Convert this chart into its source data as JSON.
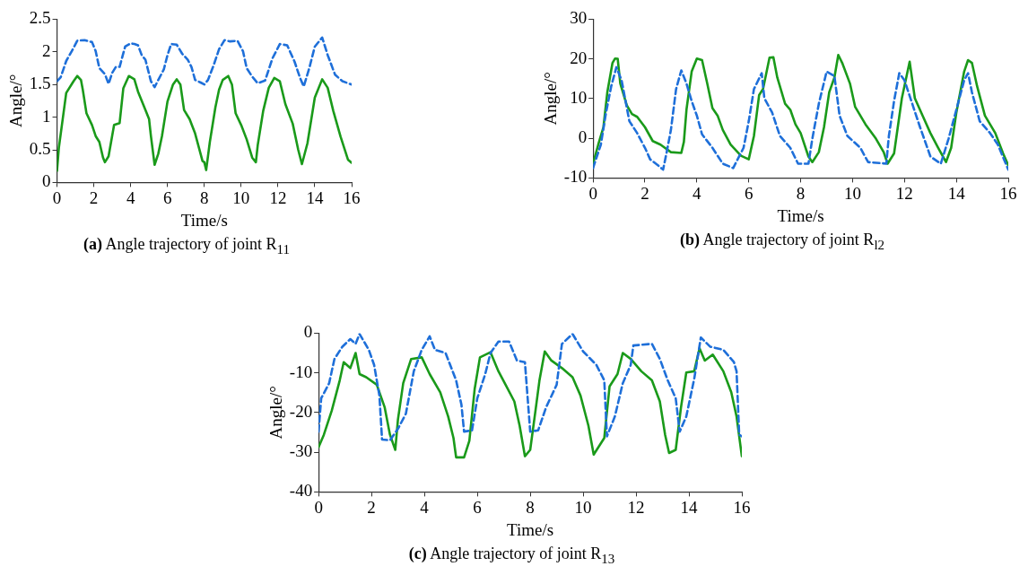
{
  "chart_data": [
    {
      "type": "line",
      "title": "(a) Angle trajectory of joint R$_{11}$",
      "xlabel": "Time/s",
      "ylabel": "Angle/°",
      "xlim": [
        0,
        16
      ],
      "xticks": [
        0,
        2,
        4,
        6,
        8,
        10,
        12,
        14,
        16
      ],
      "ylim": [
        0,
        2.5
      ],
      "yticks": [
        0,
        0.5,
        1,
        1.5,
        2,
        2.5
      ],
      "grid": false,
      "legend": false,
      "marker": "none",
      "series": [
        {
          "color": "#1e6fd9",
          "line_style": "dashed",
          "x": [
            0,
            0.2,
            0.5,
            0.8,
            1.1,
            1.5,
            1.9,
            2.1,
            2.3,
            2.6,
            2.8,
            3,
            3.2,
            3.4,
            3.7,
            4,
            4.2,
            4.4,
            4.6,
            4.8,
            5.1,
            5.3,
            5.5,
            5.8,
            6,
            6.2,
            6.5,
            6.8,
            7.1,
            7.3,
            7.5,
            7.8,
            8,
            8.2,
            8.5,
            8.8,
            9.1,
            9.4,
            9.8,
            10.1,
            10.3,
            10.6,
            10.9,
            11.3,
            11.7,
            12.1,
            12.5,
            12.9,
            13.2,
            13.4,
            13.7,
            14,
            14.4,
            14.7,
            15.1,
            15.5,
            16
          ],
          "values": [
            1.55,
            1.61,
            1.86,
            2.01,
            2.17,
            2.18,
            2.15,
            2.01,
            1.75,
            1.66,
            1.51,
            1.68,
            1.77,
            1.77,
            2.08,
            2.13,
            2.12,
            2.1,
            1.95,
            1.88,
            1.55,
            1.46,
            1.57,
            1.73,
            1.95,
            2.12,
            2.11,
            1.97,
            1.88,
            1.77,
            1.57,
            1.53,
            1.5,
            1.57,
            1.79,
            2.04,
            2.18,
            2.16,
            2.17,
            2.01,
            1.75,
            1.62,
            1.52,
            1.56,
            1.9,
            2.12,
            2.1,
            1.85,
            1.6,
            1.47,
            1.75,
            2.08,
            2.22,
            1.95,
            1.65,
            1.55,
            1.5
          ]
        },
        {
          "color": "#1a9a1a",
          "line_style": "solid",
          "x": [
            0,
            0.1,
            0.5,
            0.9,
            1.1,
            1.3,
            1.4,
            1.6,
            1.9,
            2.1,
            2.3,
            2.5,
            2.6,
            2.8,
            3.1,
            3.4,
            3.6,
            3.9,
            4.2,
            4.4,
            4.8,
            5,
            5.1,
            5.3,
            5.5,
            5.7,
            6,
            6.3,
            6.5,
            6.7,
            6.9,
            7.2,
            7.5,
            7.9,
            8,
            8.1,
            8.3,
            8.6,
            8.8,
            9,
            9.3,
            9.5,
            9.7,
            10,
            10.3,
            10.6,
            10.8,
            10.9,
            11.2,
            11.5,
            11.8,
            12.1,
            12.4,
            12.8,
            13.1,
            13.3,
            13.6,
            14,
            14.4,
            14.7,
            15,
            15.4,
            15.8,
            16
          ],
          "values": [
            0.18,
            0.53,
            1.37,
            1.55,
            1.63,
            1.57,
            1.42,
            1.06,
            0.88,
            0.71,
            0.62,
            0.38,
            0.31,
            0.4,
            0.88,
            0.91,
            1.44,
            1.63,
            1.58,
            1.39,
            1.11,
            0.97,
            0.71,
            0.27,
            0.44,
            0.71,
            1.24,
            1.5,
            1.58,
            1.5,
            1.11,
            0.97,
            0.75,
            0.33,
            0.31,
            0.19,
            0.62,
            1.15,
            1.42,
            1.57,
            1.63,
            1.5,
            1.06,
            0.88,
            0.66,
            0.38,
            0.31,
            0.57,
            1.1,
            1.45,
            1.6,
            1.55,
            1.2,
            0.9,
            0.5,
            0.28,
            0.6,
            1.3,
            1.58,
            1.45,
            1.1,
            0.7,
            0.35,
            0.3
          ]
        }
      ]
    },
    {
      "type": "line",
      "title": "(b) Angle trajectory of joint R$_{l2}$",
      "xlabel": "Time/s",
      "ylabel": "Angle/°",
      "xlim": [
        0,
        16
      ],
      "xticks": [
        0,
        2,
        4,
        6,
        8,
        10,
        12,
        14,
        16
      ],
      "ylim": [
        -10,
        30
      ],
      "yticks": [
        -10,
        0,
        10,
        20,
        30
      ],
      "grid": false,
      "legend": false,
      "marker": "none",
      "series": [
        {
          "color": "#1e6fd9",
          "line_style": "dashed",
          "x": [
            0,
            0.3,
            0.5,
            0.7,
            0.9,
            1.1,
            1.4,
            1.7,
            2,
            2.2,
            2.5,
            2.7,
            2.85,
            3,
            3.2,
            3.4,
            3.6,
            3.8,
            4,
            4.2,
            4.6,
            5,
            5.4,
            5.8,
            6,
            6.2,
            6.5,
            6.6,
            6.9,
            7.2,
            7.6,
            7.9,
            8.3,
            8.45,
            8.7,
            9,
            9.3,
            9.5,
            9.8,
            10.3,
            10.6,
            11.3,
            11.4,
            11.6,
            11.8,
            12,
            12.3,
            12.6,
            13,
            13.4,
            13.7,
            14,
            14.3,
            14.45,
            14.6,
            14.9,
            15.3,
            15.6,
            16
          ],
          "values": [
            -7.5,
            -1.6,
            6.5,
            13.1,
            17.9,
            14.6,
            4.3,
            1.3,
            -2.4,
            -5.3,
            -6.8,
            -7.9,
            -3.1,
            2.1,
            12.4,
            17.1,
            13.8,
            9.4,
            5.7,
            1,
            -2.4,
            -6.4,
            -7.5,
            -2.4,
            4.3,
            12.4,
            16.4,
            10.1,
            6.5,
            0.6,
            -2.4,
            -6.4,
            -6.4,
            -0.1,
            8.7,
            16.8,
            15.7,
            5.7,
            0.6,
            -2.4,
            -6,
            -6.4,
            0.6,
            9.4,
            16.4,
            14.6,
            8.7,
            2.8,
            -4.6,
            -6.4,
            -0.1,
            7.2,
            14.6,
            16.4,
            11.6,
            4.3,
            1.3,
            -1.6,
            -7.9
          ]
        },
        {
          "color": "#1a9a1a",
          "line_style": "solid",
          "x": [
            0,
            0.2,
            0.4,
            0.55,
            0.75,
            0.85,
            0.95,
            1.05,
            1.3,
            1.5,
            1.7,
            2,
            2.3,
            2.6,
            3,
            3.4,
            3.5,
            3.6,
            3.8,
            4,
            4.2,
            4.4,
            4.6,
            4.8,
            5,
            5.3,
            5.7,
            6,
            6.2,
            6.4,
            6.55,
            6.8,
            6.95,
            7.1,
            7.4,
            7.6,
            7.8,
            8,
            8.3,
            8.45,
            8.7,
            8.9,
            9.1,
            9.3,
            9.45,
            9.6,
            9.9,
            10.1,
            10.5,
            10.9,
            11.2,
            11.35,
            11.6,
            11.9,
            12.2,
            12.4,
            12.7,
            13,
            13.3,
            13.6,
            13.8,
            14,
            14.3,
            14.45,
            14.6,
            14.8,
            15.1,
            15.5,
            15.8,
            16
          ],
          "values": [
            -6.4,
            -1.6,
            2.8,
            11.6,
            19,
            20.1,
            20,
            13.8,
            8.3,
            6.1,
            5.4,
            2.8,
            -0.7,
            -1.6,
            -3.5,
            -3.7,
            -0.9,
            7.2,
            16.8,
            20.1,
            19.7,
            13.8,
            7.6,
            5.7,
            2.1,
            -1.6,
            -4.4,
            -5.3,
            0.6,
            10.9,
            12.4,
            20.3,
            20.4,
            15.3,
            8.7,
            7.2,
            3.5,
            1.3,
            -4.6,
            -6,
            -3.5,
            2.8,
            11.6,
            15.3,
            21,
            19,
            13.8,
            7.9,
            3.5,
            -0.1,
            -3.5,
            -6.4,
            -3.8,
            10.1,
            19.3,
            10.1,
            5.7,
            1.3,
            -2.4,
            -6,
            -2.4,
            6.5,
            16.8,
            19.7,
            19,
            13.1,
            5.7,
            1.3,
            -3.8,
            -6.8
          ]
        }
      ]
    },
    {
      "type": "line",
      "title": "(c) Angle trajectory of joint R$_{13}$",
      "xlabel": "Time/s",
      "ylabel": "Angle/°",
      "xlim": [
        0,
        16
      ],
      "xticks": [
        0,
        2,
        4,
        6,
        8,
        10,
        12,
        14,
        16
      ],
      "ylim": [
        -40,
        0
      ],
      "yticks": [
        -40,
        -30,
        -20,
        -10,
        0
      ],
      "grid": false,
      "legend": false,
      "marker": "none",
      "series": [
        {
          "color": "#1e6fd9",
          "line_style": "dashed",
          "x": [
            0,
            0.1,
            0.4,
            0.6,
            0.9,
            1.2,
            1.4,
            1.55,
            1.9,
            2.1,
            2.3,
            2.4,
            2.7,
            3,
            3.3,
            3.6,
            3.9,
            4.2,
            4.4,
            4.8,
            5.2,
            5.4,
            5.5,
            5.8,
            6,
            6.3,
            6.5,
            6.8,
            7.2,
            7.5,
            7.8,
            8,
            8.3,
            8.6,
            9,
            9.2,
            9.6,
            10,
            10.5,
            10.8,
            10.9,
            11.2,
            11.5,
            11.8,
            11.9,
            12.6,
            12.9,
            13.2,
            13.5,
            13.65,
            13.9,
            14.2,
            14.45,
            14.8,
            15.3,
            15.7,
            15.8,
            15.9,
            16
          ],
          "values": [
            -24.8,
            -16.4,
            -12.6,
            -6.5,
            -3.4,
            -1.5,
            -2.7,
            -0.2,
            -4.2,
            -8,
            -15.7,
            -26.8,
            -27,
            -24.1,
            -20.3,
            -9.6,
            -4.2,
            -0.8,
            -4.2,
            -5,
            -11.9,
            -18,
            -24.8,
            -24.5,
            -16.4,
            -10.3,
            -5,
            -2.1,
            -2.1,
            -6.9,
            -7.3,
            -24.8,
            -24.5,
            -18.7,
            -13,
            -2.7,
            -0.2,
            -4.6,
            -8,
            -11.9,
            -26,
            -21,
            -12.6,
            -8,
            -3.1,
            -2.7,
            -6.5,
            -11.9,
            -16.4,
            -24.8,
            -21,
            -11.5,
            -1.1,
            -3.4,
            -4.2,
            -7.3,
            -9.6,
            -25.6,
            -26
          ]
        },
        {
          "color": "#1a9a1a",
          "line_style": "solid",
          "x": [
            0,
            0.2,
            0.5,
            0.8,
            0.95,
            1.2,
            1.4,
            1.55,
            1.8,
            2.2,
            2.5,
            2.7,
            2.9,
            3,
            3.2,
            3.5,
            3.9,
            4.2,
            4.6,
            4.9,
            5.1,
            5.2,
            5.5,
            5.7,
            5.9,
            6.1,
            6.5,
            6.8,
            7.1,
            7.4,
            7.6,
            7.8,
            8,
            8.2,
            8.35,
            8.55,
            8.8,
            9.2,
            9.6,
            9.9,
            10.2,
            10.4,
            10.8,
            11,
            11.3,
            11.5,
            11.8,
            12.2,
            12.6,
            12.9,
            13.1,
            13.25,
            13.5,
            13.7,
            13.9,
            14.2,
            14.4,
            14.6,
            14.9,
            15.3,
            15.6,
            15.8,
            16
          ],
          "values": [
            -28.7,
            -25.6,
            -19.5,
            -11.9,
            -7.3,
            -8.8,
            -5,
            -10.3,
            -11.1,
            -13,
            -18.7,
            -25.6,
            -29.4,
            -21.8,
            -12.6,
            -6.5,
            -6.1,
            -10.3,
            -14.9,
            -21,
            -26.4,
            -31.3,
            -31.3,
            -27.1,
            -14.1,
            -6.1,
            -4.8,
            -9.6,
            -13.4,
            -17.2,
            -23.3,
            -31,
            -29.4,
            -19.5,
            -11.9,
            -4.6,
            -6.9,
            -8.8,
            -11.1,
            -15.7,
            -23.3,
            -30.6,
            -26.4,
            -13.4,
            -10.3,
            -5,
            -6.5,
            -9.6,
            -11.9,
            -17.2,
            -25.6,
            -30.2,
            -29.4,
            -18.7,
            -9.9,
            -9.6,
            -3.8,
            -6.9,
            -5.4,
            -9.6,
            -14.9,
            -21,
            -31
          ]
        }
      ]
    }
  ]
}
